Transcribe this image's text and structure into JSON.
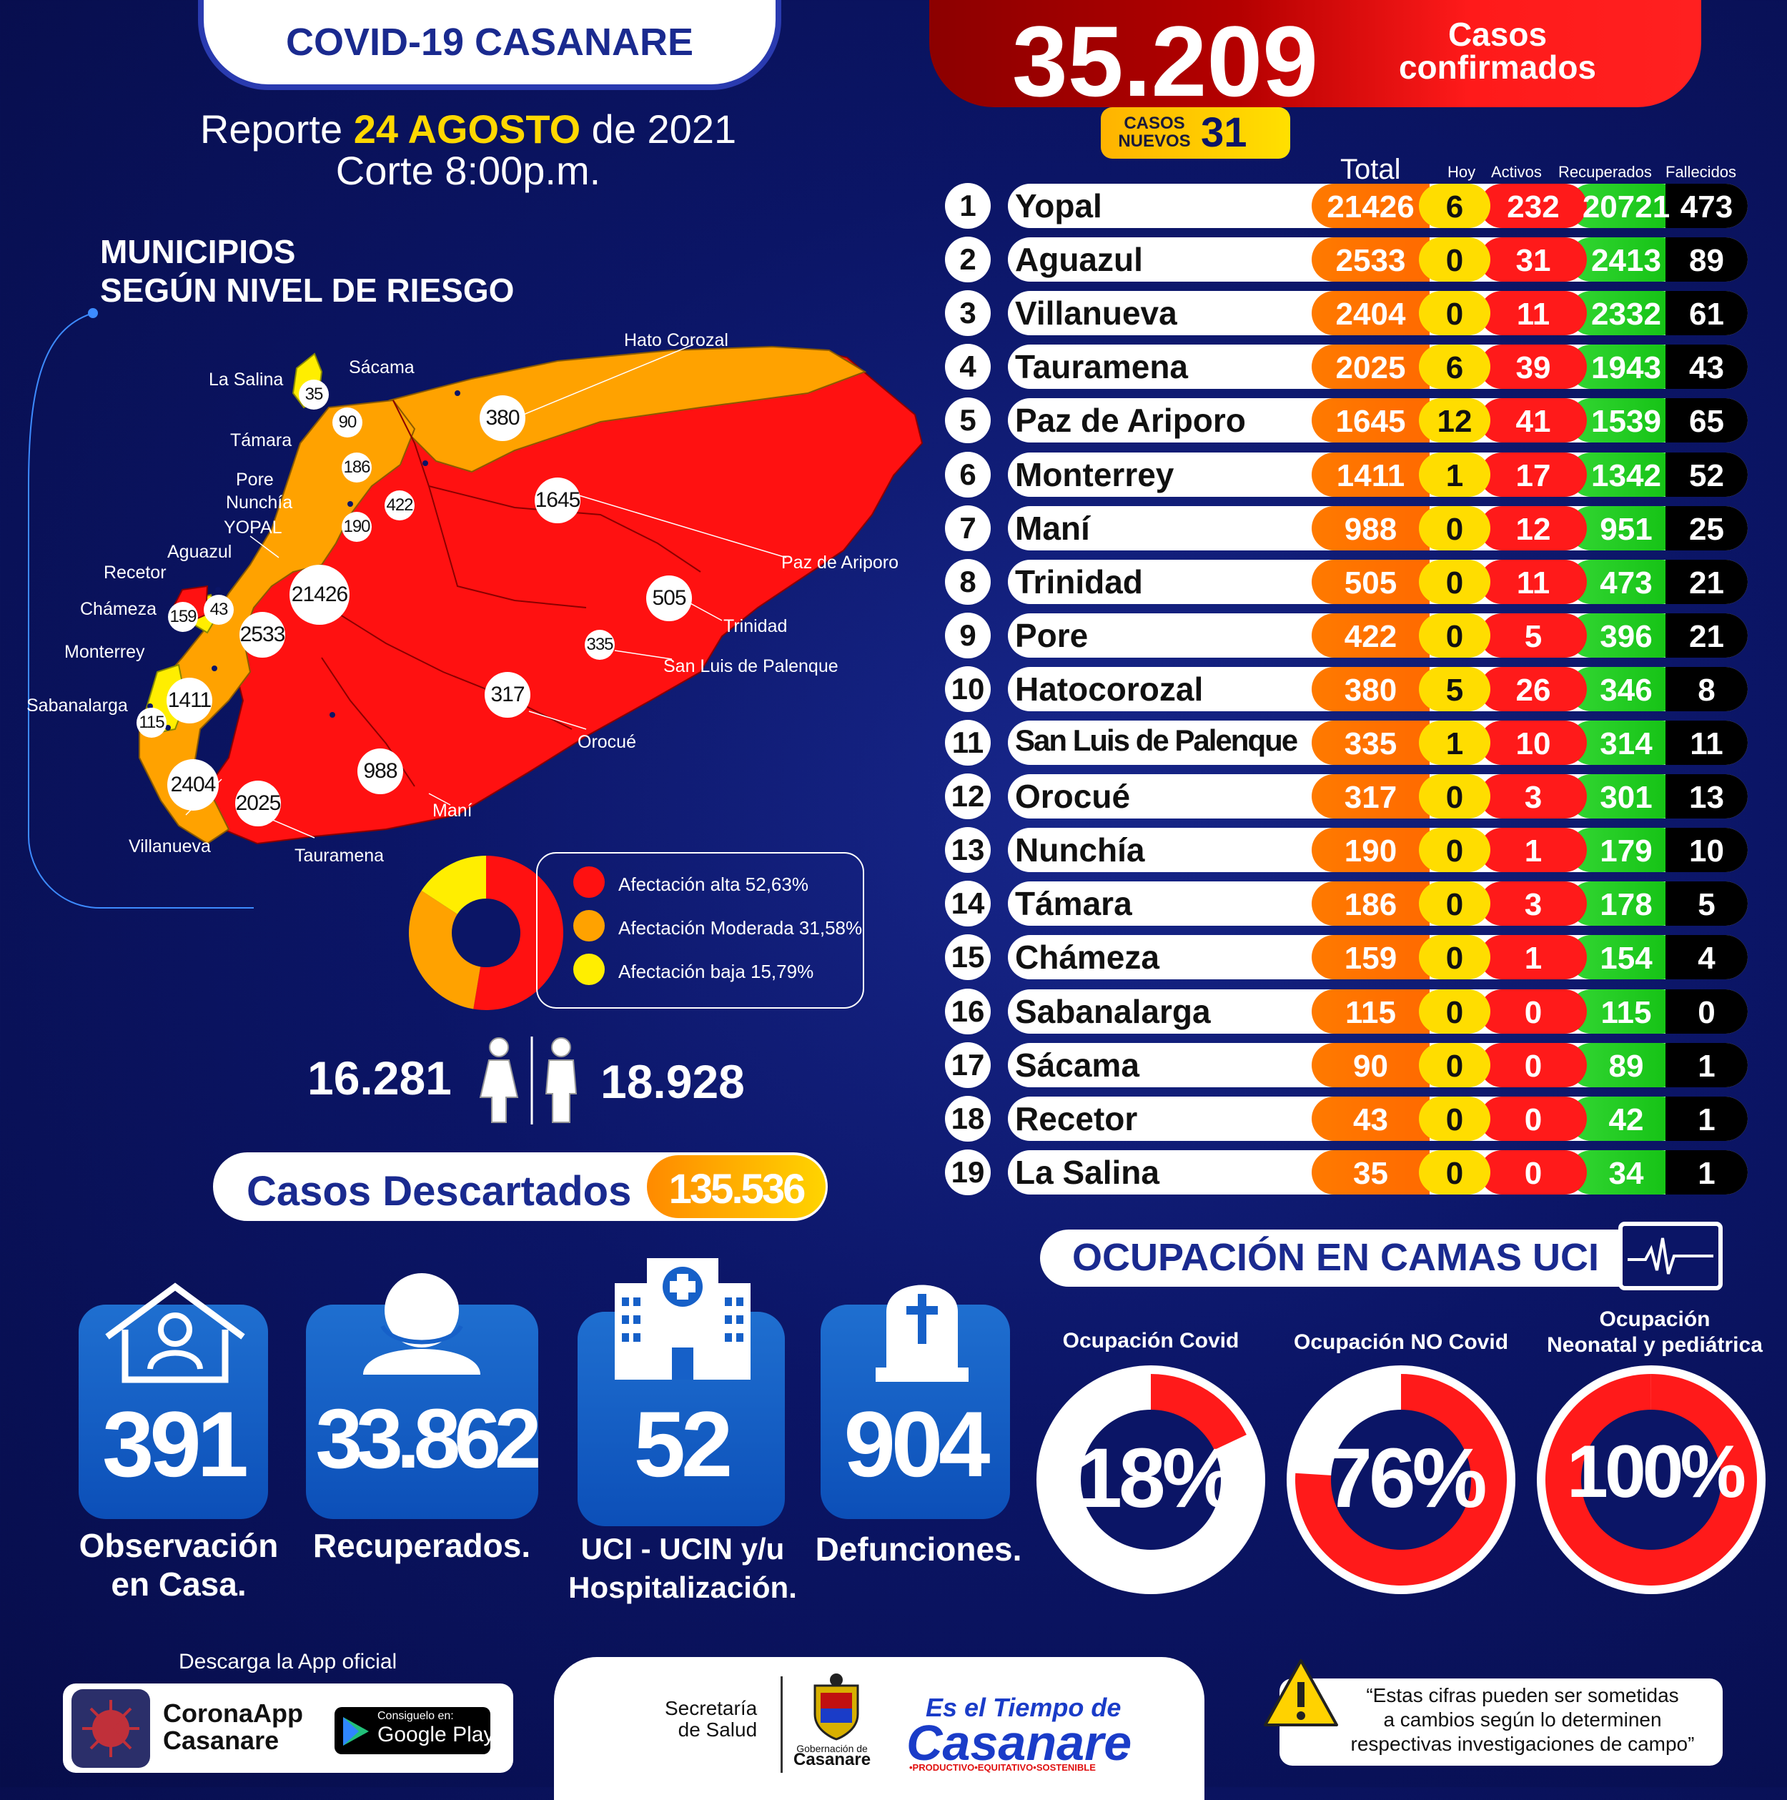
{
  "header": {
    "title": "COVID-19 CASANARE",
    "report_prefix": "Reporte ",
    "report_date": "24 AGOSTO",
    "report_suffix": " de  2021",
    "cutoff": "Corte 8:00p.m."
  },
  "summary": {
    "total_cases": "35.209",
    "total_label_1": "Casos",
    "total_label_2": "confirmados",
    "new_label_1": "CASOS",
    "new_label_2": "NUEVOS",
    "new_cases": "31"
  },
  "map": {
    "title_1": "MUNICIPIOS",
    "title_2": "SEGÚN NIVEL DE RIESGO",
    "labels": {
      "hato_corozal": "Hato Corozal",
      "sacama": "Sácama",
      "la_salina": "La Salina",
      "tamara": "Támara",
      "pore": "Pore",
      "nunchia": "Nunchía",
      "yopal": "YOPAL",
      "aguazul": "Aguazul",
      "recetor": "Recetor",
      "chameza": "Chámeza",
      "monterrey": "Monterrey",
      "sabanalarga": "Sabanalarga",
      "villanueva": "Villanueva",
      "tauramena": "Tauramena",
      "mani": "Maní",
      "orocue": "Orocué",
      "san_luis": "San Luis de Palenque",
      "trinidad": "Trinidad",
      "paz_de_ariporo": "Paz de Ariporo"
    },
    "values": {
      "la_salina": "35",
      "sacama": "90",
      "hato_corozal": "380",
      "tamara": "186",
      "pore": "422",
      "nunchia": "190",
      "paz_de_ariporo": "1645",
      "yopal": "21426",
      "aguazul": "2533",
      "recetor": "43",
      "chameza": "159",
      "trinidad": "505",
      "san_luis": "335",
      "monterrey": "1411",
      "sabanalarga": "115",
      "orocue": "317",
      "villanueva": "2404",
      "tauramena": "2025",
      "mani": "988"
    },
    "colors": {
      "alta": "#ff1111",
      "moderada": "#ffa200",
      "baja": "#ffee00"
    }
  },
  "risk_legend": [
    {
      "label": "Afectación alta 52,63%",
      "percent": 52.63,
      "color": "#ff1111"
    },
    {
      "label": "Afectación Moderada 31,58%",
      "percent": 31.58,
      "color": "#ffa200"
    },
    {
      "label": "Afectación baja 15,79%",
      "percent": 15.79,
      "color": "#ffee00"
    }
  ],
  "gender": {
    "female": "16.281",
    "male": "18.928"
  },
  "discarded": {
    "label": "Casos Descartados",
    "value": "135.536"
  },
  "table": {
    "headers": {
      "total": "Total",
      "hoy": "Hoy",
      "activos": "Activos",
      "recuperados": "Recuperados",
      "fallecidos": "Fallecidos"
    },
    "rows": [
      {
        "n": "1",
        "name": "Yopal",
        "total": "21426",
        "hoy": "6",
        "activos": "232",
        "recuperados": "20721",
        "fallecidos": "473"
      },
      {
        "n": "2",
        "name": "Aguazul",
        "total": "2533",
        "hoy": "0",
        "activos": "31",
        "recuperados": "2413",
        "fallecidos": "89"
      },
      {
        "n": "3",
        "name": "Villanueva",
        "total": "2404",
        "hoy": "0",
        "activos": "11",
        "recuperados": "2332",
        "fallecidos": "61"
      },
      {
        "n": "4",
        "name": "Tauramena",
        "total": "2025",
        "hoy": "6",
        "activos": "39",
        "recuperados": "1943",
        "fallecidos": "43"
      },
      {
        "n": "5",
        "name": "Paz de Ariporo",
        "total": "1645",
        "hoy": "12",
        "activos": "41",
        "recuperados": "1539",
        "fallecidos": "65"
      },
      {
        "n": "6",
        "name": "Monterrey",
        "total": "1411",
        "hoy": "1",
        "activos": "17",
        "recuperados": "1342",
        "fallecidos": "52"
      },
      {
        "n": "7",
        "name": "Maní",
        "total": "988",
        "hoy": "0",
        "activos": "12",
        "recuperados": "951",
        "fallecidos": "25"
      },
      {
        "n": "8",
        "name": "Trinidad",
        "total": "505",
        "hoy": "0",
        "activos": "11",
        "recuperados": "473",
        "fallecidos": "21"
      },
      {
        "n": "9",
        "name": "Pore",
        "total": "422",
        "hoy": "0",
        "activos": "5",
        "recuperados": "396",
        "fallecidos": "21"
      },
      {
        "n": "10",
        "name": "Hatocorozal",
        "total": "380",
        "hoy": "5",
        "activos": "26",
        "recuperados": "346",
        "fallecidos": "8"
      },
      {
        "n": "11",
        "name": "San Luis de Palenque",
        "total": "335",
        "hoy": "1",
        "activos": "10",
        "recuperados": "314",
        "fallecidos": "11"
      },
      {
        "n": "12",
        "name": "Orocué",
        "total": "317",
        "hoy": "0",
        "activos": "3",
        "recuperados": "301",
        "fallecidos": "13"
      },
      {
        "n": "13",
        "name": "Nunchía",
        "total": "190",
        "hoy": "0",
        "activos": "1",
        "recuperados": "179",
        "fallecidos": "10"
      },
      {
        "n": "14",
        "name": "Támara",
        "total": "186",
        "hoy": "0",
        "activos": "3",
        "recuperados": "178",
        "fallecidos": "5"
      },
      {
        "n": "15",
        "name": "Chámeza",
        "total": "159",
        "hoy": "0",
        "activos": "1",
        "recuperados": "154",
        "fallecidos": "4"
      },
      {
        "n": "16",
        "name": "Sabanalarga",
        "total": "115",
        "hoy": "0",
        "activos": "0",
        "recuperados": "115",
        "fallecidos": "0"
      },
      {
        "n": "17",
        "name": "Sácama",
        "total": "90",
        "hoy": "0",
        "activos": "0",
        "recuperados": "89",
        "fallecidos": "1"
      },
      {
        "n": "18",
        "name": "Recetor",
        "total": "43",
        "hoy": "0",
        "activos": "0",
        "recuperados": "42",
        "fallecidos": "1"
      },
      {
        "n": "19",
        "name": "La Salina",
        "total": "35",
        "hoy": "0",
        "activos": "0",
        "recuperados": "34",
        "fallecidos": "1"
      }
    ]
  },
  "stats": [
    {
      "value": "391",
      "label_1": "Observación",
      "label_2": "en Casa.",
      "icon": "house-person-icon"
    },
    {
      "value": "33.862",
      "label_1": "Recuperados.",
      "label_2": "",
      "icon": "person-bust-icon"
    },
    {
      "value": "52",
      "label_1": "UCI - UCIN y/u",
      "label_2": "Hospitalización.",
      "icon": "hospital-icon"
    },
    {
      "value": "904",
      "label_1": "Defunciones.",
      "label_2": "",
      "icon": "tombstone-icon"
    }
  ],
  "uci": {
    "title": "OCUPACIÓN EN CAMAS UCI",
    "items": [
      {
        "label_1": "Ocupación Covid",
        "label_2": "",
        "value": "18",
        "fraction": 0.18
      },
      {
        "label_1": "Ocupación NO Covid",
        "label_2": "",
        "value": "76",
        "fraction": 0.76
      },
      {
        "label_1": "Ocupación",
        "label_2": "Neonatal y pediátrica",
        "value": "100",
        "fraction": 1.0
      }
    ],
    "pct_sign": "%"
  },
  "footer": {
    "app_title": "Descarga la App oficial",
    "app_name_1": "CoronaApp",
    "app_name_2": "Casanare",
    "gp_small": "Consiguelo en:",
    "gp_big": "Google Play",
    "sec_1": "Secretaría",
    "sec_2": "de Salud",
    "gob_1": "Gobernación de",
    "gob_2": "Casanare",
    "slogan_1": "Es el Tiempo de",
    "slogan_2": "Casanare",
    "slogan_3": "•PRODUCTIVO•EQUITATIVO•SOSTENIBLE",
    "note_1": "“Estas cifras pueden ser sometidas",
    "note_2": "a cambios según lo determinen",
    "note_3": "respectivas investigaciones de campo”"
  }
}
